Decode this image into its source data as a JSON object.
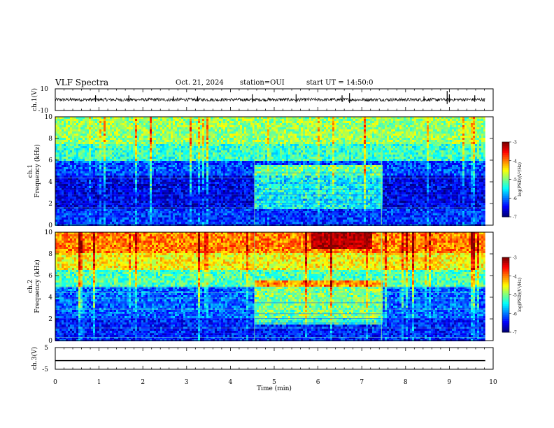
{
  "header": {
    "title": "VLF Spectra",
    "date": "Oct. 21, 2024",
    "station": "station=OUI",
    "start_ut": "start UT =  14:50:0"
  },
  "chart_data": [
    {
      "type": "line",
      "name": "ch1-waveform",
      "ylabel": "ch.1(V)",
      "ylim": [
        -10,
        10
      ],
      "yticks": [
        "10",
        "-10"
      ],
      "x_range_min": [
        0,
        9.82
      ],
      "baseline": 0,
      "spikes_min": [
        0.92,
        1.68,
        2.7,
        3.25,
        4.5,
        5.5,
        6.55,
        6.72,
        8.42,
        8.95,
        9.0,
        9.58
      ],
      "spike_amp_V": [
        4,
        4,
        3,
        3,
        5,
        5,
        4,
        6,
        3,
        8,
        5,
        4
      ]
    },
    {
      "type": "heatmap",
      "name": "ch1-spectrogram",
      "ylabel": "ch.1\nFrequency (kHz)",
      "yticks": [
        "0",
        "2",
        "4",
        "6",
        "8",
        "10"
      ],
      "ylim_kHz": [
        0,
        10
      ],
      "x_range_min": [
        0,
        9.82
      ],
      "colorbar": {
        "label": "log(PSD)(V²/Hz)",
        "ticks": [
          "-3",
          "-4",
          "-5",
          "-6",
          "-7"
        ],
        "range": [
          -7,
          -3
        ]
      },
      "bands": [
        {
          "f_kHz": [
            0,
            1.5
          ],
          "logPSD": -6.3
        },
        {
          "f_kHz": [
            1.5,
            4.5
          ],
          "logPSD": -6.6
        },
        {
          "f_kHz": [
            4.5,
            6.0
          ],
          "logPSD": -6.2
        },
        {
          "f_kHz": [
            6.0,
            7.5
          ],
          "logPSD": -5.3
        },
        {
          "f_kHz": [
            7.5,
            10
          ],
          "logPSD": -4.9
        }
      ],
      "event_window_min": [
        4.55,
        7.45
      ]
    },
    {
      "type": "heatmap",
      "name": "ch2-spectrogram",
      "ylabel": "ch.2\nFrequency (kHz)",
      "yticks": [
        "0",
        "2",
        "4",
        "6",
        "8",
        "10"
      ],
      "ylim_kHz": [
        0,
        10
      ],
      "x_range_min": [
        0,
        9.82
      ],
      "colorbar": {
        "label": "log(PSD)(V²/Hz)",
        "ticks": [
          "-3",
          "-4",
          "-5",
          "-6",
          "-7"
        ],
        "range": [
          -7,
          -3
        ]
      },
      "bands": [
        {
          "f_kHz": [
            0,
            2.0
          ],
          "logPSD": -6.4
        },
        {
          "f_kHz": [
            2.0,
            5.0
          ],
          "logPSD": -6.1
        },
        {
          "f_kHz": [
            5.0,
            6.5
          ],
          "logPSD": -5.2
        },
        {
          "f_kHz": [
            6.5,
            8.0
          ],
          "logPSD": -4.5
        },
        {
          "f_kHz": [
            8.0,
            10
          ],
          "logPSD": -4.0
        }
      ],
      "event_window_min": [
        4.55,
        7.45
      ],
      "hot_patch": {
        "min": [
          5.8,
          7.2
        ],
        "f_kHz": [
          8.5,
          10
        ],
        "logPSD": -3.2
      }
    },
    {
      "type": "line",
      "name": "ch3-waveform",
      "ylabel": "ch.3(V)",
      "ylim": [
        -5,
        5
      ],
      "yticks": [
        "5",
        "-5"
      ],
      "x_range_min": [
        0,
        9.82
      ],
      "constant_V": -1.0
    }
  ],
  "xaxis": {
    "label": "Time (min)",
    "ticks": [
      "0",
      "1",
      "2",
      "3",
      "4",
      "5",
      "6",
      "7",
      "8",
      "9",
      "10"
    ],
    "range": [
      0,
      10
    ]
  }
}
